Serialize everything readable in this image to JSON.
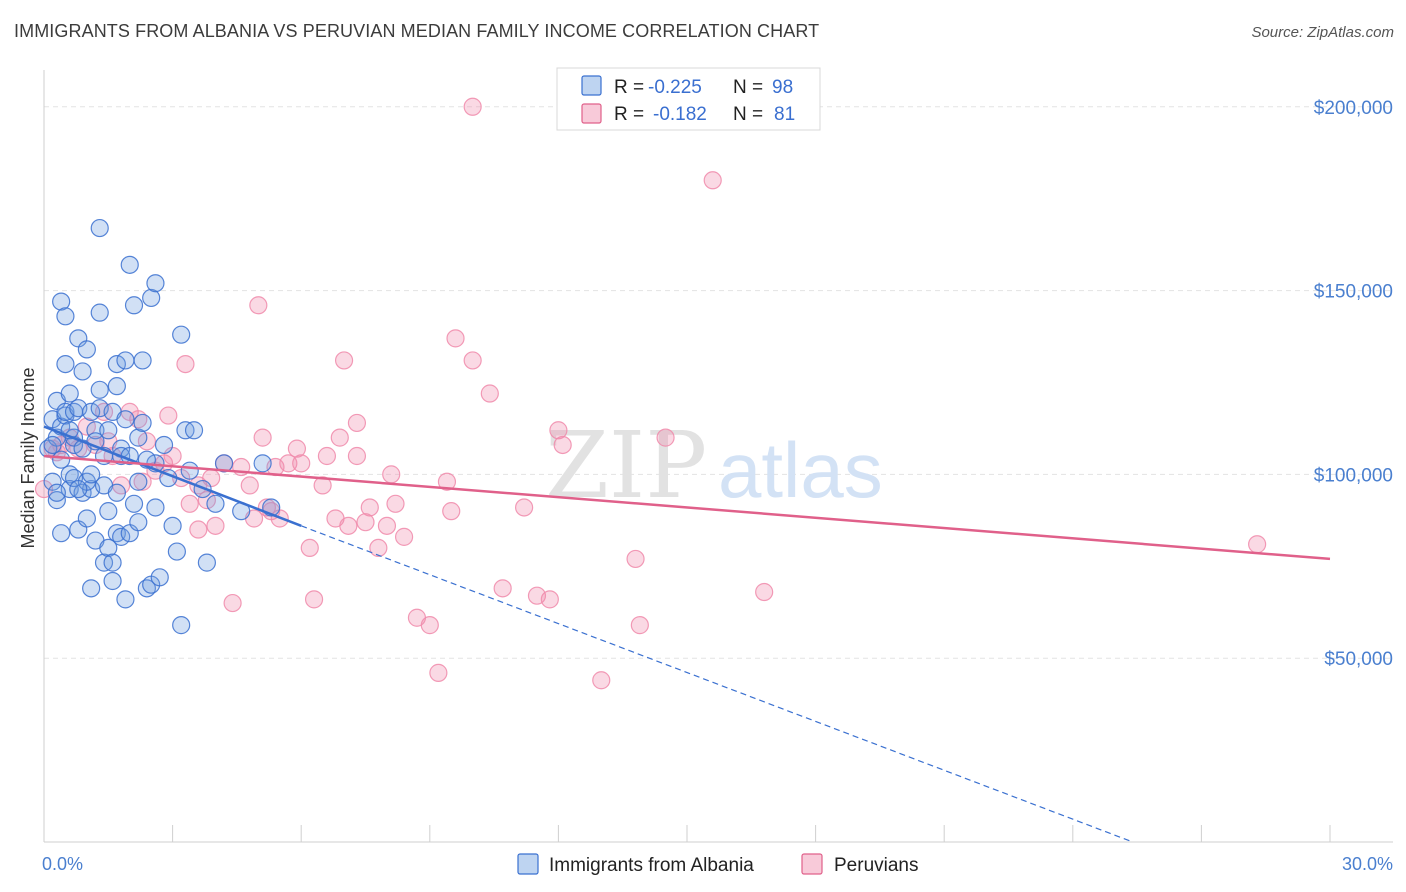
{
  "header": {
    "title": "IMMIGRANTS FROM ALBANIA VS PERUVIAN MEDIAN FAMILY INCOME CORRELATION CHART",
    "source": "Source: ZipAtlas.com"
  },
  "watermark": {
    "zip": "ZIP",
    "atlas": "atlas"
  },
  "colors": {
    "albania": "#6fa0e0",
    "albania_line": "#3a70d0",
    "peru": "#f08aaa",
    "peru_line": "#e0608a",
    "tick_text": "#4a7fcf",
    "grid": "#e3e3e3"
  },
  "legend": {
    "row1": {
      "r_label": "R =",
      "r_value": "-0.225",
      "n_label": "N =",
      "n_value": "98"
    },
    "row2": {
      "r_label": "R =",
      "r_value": "-0.182",
      "n_label": "N =",
      "n_value": "81"
    }
  },
  "chart_data": {
    "type": "scatter",
    "title": "IMMIGRANTS FROM ALBANIA VS PERUVIAN MEDIAN FAMILY INCOME CORRELATION CHART",
    "xlabel": "",
    "ylabel": "Median Family Income",
    "xlim": [
      0,
      30
    ],
    "ylim": [
      0,
      210000
    ],
    "x_tick_labels": [
      "0.0%",
      "30.0%"
    ],
    "y_ticks": [
      50000,
      100000,
      150000,
      200000
    ],
    "y_tick_labels": [
      "$50,000",
      "$100,000",
      "$150,000",
      "$200,000"
    ],
    "grid": true,
    "legend_position": "top-center",
    "series": [
      {
        "name": "Immigrants from Albania",
        "r": -0.225,
        "n": 98,
        "trend": {
          "x0": 0,
          "y0": 113000,
          "x1": 6.0,
          "y1": 86000,
          "dashed_to_x": 25.4,
          "dashed_to_y": 0
        },
        "points": [
          [
            0.1,
            107000
          ],
          [
            0.2,
            115000
          ],
          [
            0.2,
            98000
          ],
          [
            0.3,
            120000
          ],
          [
            0.3,
            110000
          ],
          [
            0.3,
            93000
          ],
          [
            0.4,
            84000
          ],
          [
            0.4,
            147000
          ],
          [
            0.4,
            113000
          ],
          [
            0.5,
            116000
          ],
          [
            0.5,
            117000
          ],
          [
            0.5,
            130000
          ],
          [
            0.5,
            143000
          ],
          [
            0.6,
            122000
          ],
          [
            0.6,
            100000
          ],
          [
            0.6,
            96000
          ],
          [
            0.7,
            108000
          ],
          [
            0.7,
            117000
          ],
          [
            0.7,
            110000
          ],
          [
            0.7,
            99000
          ],
          [
            0.8,
            85000
          ],
          [
            0.8,
            118000
          ],
          [
            0.8,
            137000
          ],
          [
            0.9,
            128000
          ],
          [
            0.9,
            107000
          ],
          [
            0.9,
            95000
          ],
          [
            1.0,
            134000
          ],
          [
            1.0,
            88000
          ],
          [
            1.1,
            96000
          ],
          [
            1.1,
            69000
          ],
          [
            1.1,
            117000
          ],
          [
            1.2,
            112000
          ],
          [
            1.2,
            109000
          ],
          [
            1.2,
            82000
          ],
          [
            1.3,
            144000
          ],
          [
            1.3,
            123000
          ],
          [
            1.3,
            118000
          ],
          [
            1.3,
            167000
          ],
          [
            1.4,
            105000
          ],
          [
            1.4,
            97000
          ],
          [
            1.4,
            76000
          ],
          [
            1.5,
            90000
          ],
          [
            1.5,
            80000
          ],
          [
            1.6,
            71000
          ],
          [
            1.6,
            76000
          ],
          [
            1.6,
            117000
          ],
          [
            1.7,
            124000
          ],
          [
            1.7,
            130000
          ],
          [
            1.7,
            84000
          ],
          [
            1.8,
            83000
          ],
          [
            1.8,
            107000
          ],
          [
            1.8,
            105000
          ],
          [
            1.9,
            131000
          ],
          [
            1.9,
            66000
          ],
          [
            1.9,
            115000
          ],
          [
            2.0,
            157000
          ],
          [
            2.0,
            105000
          ],
          [
            2.0,
            84000
          ],
          [
            2.1,
            92000
          ],
          [
            2.1,
            146000
          ],
          [
            2.2,
            98000
          ],
          [
            2.2,
            110000
          ],
          [
            2.2,
            87000
          ],
          [
            2.3,
            131000
          ],
          [
            2.3,
            114000
          ],
          [
            2.4,
            69000
          ],
          [
            2.5,
            148000
          ],
          [
            2.5,
            70000
          ],
          [
            2.6,
            152000
          ],
          [
            2.6,
            103000
          ],
          [
            2.6,
            91000
          ],
          [
            2.7,
            72000
          ],
          [
            2.8,
            108000
          ],
          [
            2.9,
            99000
          ],
          [
            3.0,
            86000
          ],
          [
            3.1,
            79000
          ],
          [
            3.2,
            138000
          ],
          [
            3.2,
            59000
          ],
          [
            3.3,
            112000
          ],
          [
            3.4,
            101000
          ],
          [
            3.5,
            112000
          ],
          [
            3.7,
            96000
          ],
          [
            3.8,
            76000
          ],
          [
            4.0,
            92000
          ],
          [
            4.2,
            103000
          ],
          [
            4.6,
            90000
          ],
          [
            5.1,
            103000
          ],
          [
            5.3,
            91000
          ],
          [
            0.2,
            108000
          ],
          [
            0.4,
            104000
          ],
          [
            0.6,
            112000
          ],
          [
            1.0,
            98000
          ],
          [
            1.5,
            112000
          ],
          [
            2.4,
            104000
          ],
          [
            1.1,
            100000
          ],
          [
            0.8,
            96000
          ],
          [
            0.3,
            95000
          ],
          [
            1.7,
            95000
          ]
        ]
      },
      {
        "name": "Peruvians",
        "r": -0.182,
        "n": 81,
        "trend": {
          "x0": 0,
          "y0": 105000,
          "x1": 30,
          "y1": 77000
        },
        "points": [
          [
            0.0,
            96000
          ],
          [
            0.2,
            107000
          ],
          [
            0.4,
            108000
          ],
          [
            0.6,
            110000
          ],
          [
            0.8,
            107000
          ],
          [
            1.0,
            113000
          ],
          [
            1.2,
            108000
          ],
          [
            1.4,
            117000
          ],
          [
            1.6,
            105000
          ],
          [
            1.8,
            97000
          ],
          [
            2.0,
            117000
          ],
          [
            2.2,
            115000
          ],
          [
            2.4,
            109000
          ],
          [
            2.6,
            101000
          ],
          [
            2.8,
            103000
          ],
          [
            2.9,
            116000
          ],
          [
            3.0,
            105000
          ],
          [
            3.2,
            99000
          ],
          [
            3.3,
            130000
          ],
          [
            3.4,
            92000
          ],
          [
            3.6,
            85000
          ],
          [
            3.8,
            93000
          ],
          [
            3.9,
            99000
          ],
          [
            4.0,
            86000
          ],
          [
            4.2,
            103000
          ],
          [
            4.4,
            65000
          ],
          [
            4.6,
            102000
          ],
          [
            4.8,
            97000
          ],
          [
            4.9,
            88000
          ],
          [
            5.0,
            146000
          ],
          [
            5.1,
            110000
          ],
          [
            5.2,
            91000
          ],
          [
            5.4,
            102000
          ],
          [
            5.5,
            88000
          ],
          [
            5.7,
            103000
          ],
          [
            5.9,
            107000
          ],
          [
            6.0,
            103000
          ],
          [
            6.2,
            80000
          ],
          [
            6.3,
            66000
          ],
          [
            6.5,
            97000
          ],
          [
            6.6,
            105000
          ],
          [
            6.8,
            88000
          ],
          [
            6.9,
            110000
          ],
          [
            7.0,
            131000
          ],
          [
            7.1,
            86000
          ],
          [
            7.3,
            105000
          ],
          [
            7.3,
            114000
          ],
          [
            7.5,
            87000
          ],
          [
            7.6,
            91000
          ],
          [
            7.8,
            80000
          ],
          [
            8.0,
            86000
          ],
          [
            8.1,
            100000
          ],
          [
            8.2,
            92000
          ],
          [
            8.4,
            83000
          ],
          [
            8.7,
            61000
          ],
          [
            9.0,
            59000
          ],
          [
            9.2,
            46000
          ],
          [
            9.4,
            98000
          ],
          [
            9.5,
            90000
          ],
          [
            9.6,
            137000
          ],
          [
            10.0,
            131000
          ],
          [
            10.4,
            122000
          ],
          [
            10.7,
            69000
          ],
          [
            11.2,
            91000
          ],
          [
            11.5,
            67000
          ],
          [
            11.8,
            66000
          ],
          [
            12.0,
            112000
          ],
          [
            12.1,
            108000
          ],
          [
            13.0,
            44000
          ],
          [
            13.8,
            77000
          ],
          [
            13.9,
            59000
          ],
          [
            14.5,
            110000
          ],
          [
            15.6,
            180000
          ],
          [
            16.8,
            68000
          ],
          [
            28.3,
            81000
          ],
          [
            10.0,
            200000
          ],
          [
            1.5,
            109000
          ],
          [
            0.3,
            106000
          ],
          [
            2.3,
            98000
          ],
          [
            3.6,
            97000
          ],
          [
            5.3,
            90000
          ]
        ]
      }
    ]
  }
}
